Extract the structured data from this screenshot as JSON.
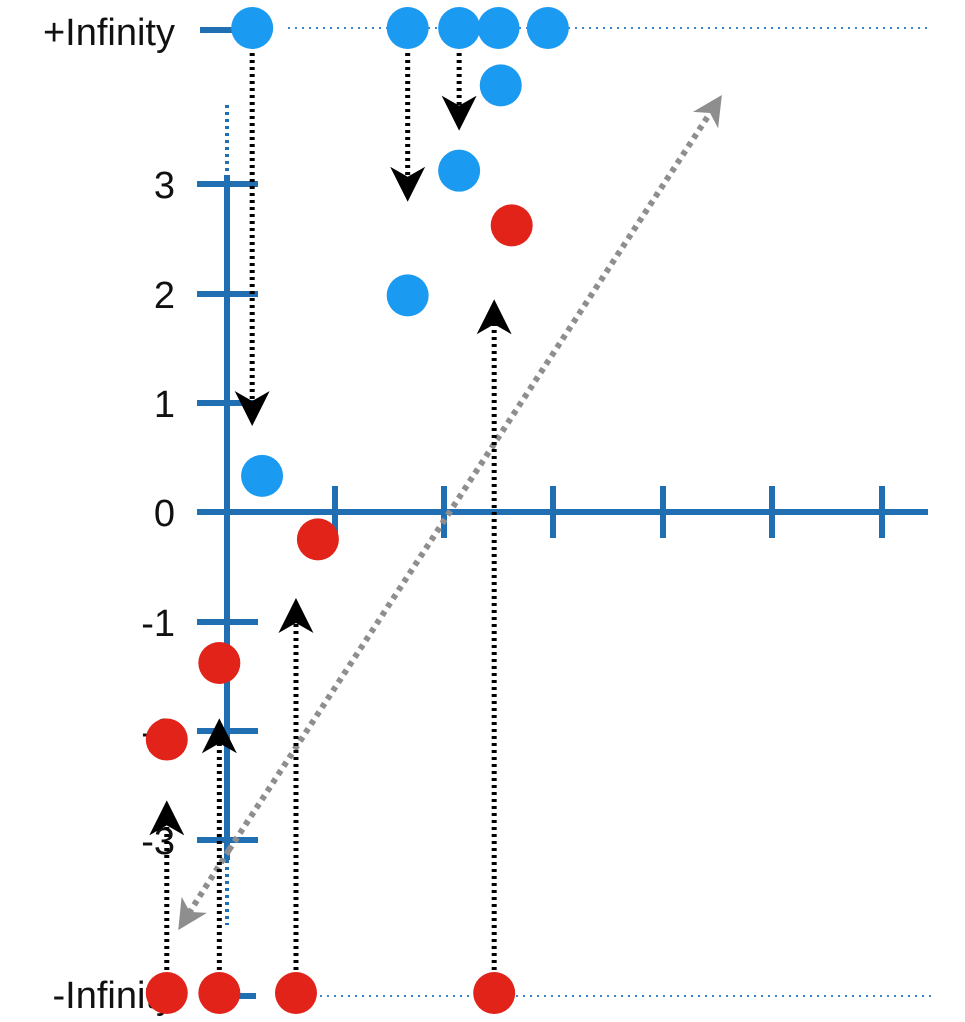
{
  "labels": {
    "pos_inf": "+Infinity",
    "neg_inf": "-Infinity"
  },
  "y_ticks": [
    "3",
    "2",
    "1",
    "0",
    "-1",
    "-2",
    "-3"
  ],
  "colors": {
    "axis": "#1f6fb2",
    "blue_point": "#1a9af0",
    "red_point": "#e1231a",
    "arrow": "#000000",
    "identity_line": "#8e8e8e"
  },
  "chart_data": {
    "type": "scatter",
    "description_axes": "x axis with 6 unlabeled tick marks; y axis ticks -3..3; extra rows for +Infinity and -Infinity",
    "ylim": [
      -3,
      3
    ],
    "blue_points": [
      {
        "x": 0.32,
        "y": 0.33
      },
      {
        "x": 1.65,
        "y": 1.98
      },
      {
        "x": 2.12,
        "y": 3.12
      },
      {
        "x": 2.5,
        "y": 3.9
      }
    ],
    "red_points": [
      {
        "x": -0.55,
        "y": -2.08
      },
      {
        "x": -0.07,
        "y": -1.38
      },
      {
        "x": 0.83,
        "y": -0.25
      },
      {
        "x": 2.6,
        "y": 2.62
      }
    ],
    "blue_at_pos_inf_x": [
      0.23,
      1.65,
      2.12,
      2.48,
      2.93
    ],
    "red_at_neg_inf_x": [
      -0.55,
      -0.07,
      0.63,
      2.44
    ],
    "down_arrows": [
      {
        "from": "+Infinity",
        "x": 0.23,
        "to_y": 0.9
      },
      {
        "from": "+Infinity",
        "x": 1.65,
        "to_y": 2.95
      },
      {
        "from": "+Infinity",
        "x": 2.12,
        "to_y": 3.6
      }
    ],
    "up_arrows": [
      {
        "from": "-Infinity",
        "x": -0.55,
        "to_y": -2.75
      },
      {
        "from": "-Infinity",
        "x": -0.07,
        "to_y": -2.0
      },
      {
        "from": "-Infinity",
        "x": 0.63,
        "to_y": -0.9
      },
      {
        "from": "-Infinity",
        "x": 2.44,
        "to_y": 1.83
      }
    ]
  }
}
